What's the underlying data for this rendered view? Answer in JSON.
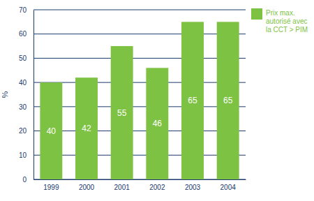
{
  "chart_data": {
    "type": "bar",
    "y_label": "%",
    "categories": [
      "1999",
      "2000",
      "2001",
      "2002",
      "2003",
      "2004"
    ],
    "series": [
      {
        "name": "Prix max. autorisé avec la CCT > PIM",
        "color": "#7dc242",
        "values": [
          40,
          42,
          55,
          46,
          65,
          65
        ]
      }
    ],
    "ylim": [
      0,
      70
    ],
    "yticks": [
      0,
      10,
      20,
      30,
      40,
      50,
      60,
      70
    ],
    "grid": true,
    "legend": "top-right",
    "data_labels": true
  }
}
